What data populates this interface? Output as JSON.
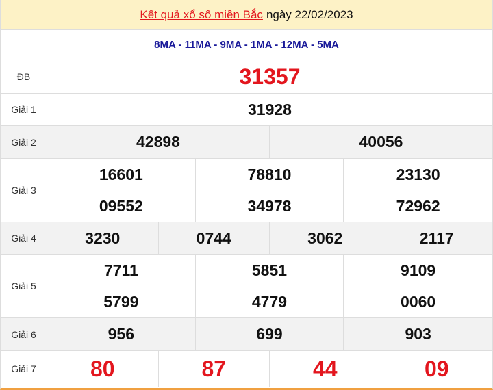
{
  "header": {
    "title_link": "Kết quả xổ số miền Bắc",
    "date_text": "ngày 22/02/2023"
  },
  "codes": "8MA - 11MA - 9MA - 1MA - 12MA - 5MA",
  "prizes": [
    {
      "label": "ĐB",
      "numbers": [
        "31357"
      ]
    },
    {
      "label": "Giải 1",
      "numbers": [
        "31928"
      ]
    },
    {
      "label": "Giải 2",
      "numbers": [
        "42898",
        "40056"
      ]
    },
    {
      "label": "Giải 3",
      "numbers": [
        "16601",
        "78810",
        "23130",
        "09552",
        "34978",
        "72962"
      ]
    },
    {
      "label": "Giải 4",
      "numbers": [
        "3230",
        "0744",
        "3062",
        "2117"
      ]
    },
    {
      "label": "Giải 5",
      "numbers": [
        "7711",
        "5851",
        "9109",
        "5799",
        "4779",
        "0060"
      ]
    },
    {
      "label": "Giải 6",
      "numbers": [
        "956",
        "699",
        "903"
      ]
    },
    {
      "label": "Giải 7",
      "numbers": [
        "80",
        "87",
        "44",
        "09"
      ]
    }
  ],
  "colors": {
    "accent_red": "#e3161e",
    "code_blue": "#1a1a9a",
    "header_bg": "#fdf2c6"
  }
}
